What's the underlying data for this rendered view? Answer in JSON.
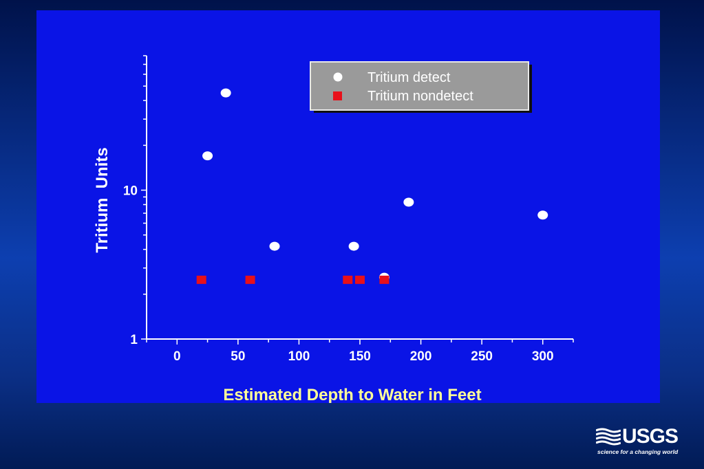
{
  "colors": {
    "panel_background": "#0a14e6",
    "detect_marker": "#ffffff",
    "nondetect_marker": "#e8101a",
    "xlabel_color": "#ffff99",
    "legend_background": "#9a9a9a"
  },
  "logo": {
    "wordmark": "USGS",
    "tagline": "science for a changing world",
    "icon": "usgs-waves-icon"
  },
  "chart_data": {
    "type": "scatter",
    "title": "",
    "xlabel": "Estimated Depth to Water in Feet",
    "ylabel": "Tritium  Units",
    "xlim": [
      -25,
      325
    ],
    "ylim": [
      1,
      80
    ],
    "yscale": "log",
    "grid": false,
    "legend_position": "top-right",
    "x_ticks": [
      0,
      50,
      100,
      150,
      200,
      250,
      300
    ],
    "x_tick_labels": [
      "0",
      "50",
      "100",
      "150",
      "200",
      "250",
      "300"
    ],
    "y_ticks": [
      1,
      10
    ],
    "y_tick_labels": [
      "1",
      "10"
    ],
    "series": [
      {
        "name": "Tritium detect",
        "marker": "circle",
        "color": "#ffffff",
        "x": [
          40,
          25,
          190,
          300,
          80,
          145,
          170
        ],
        "y": [
          45,
          17,
          8.3,
          6.8,
          4.2,
          4.2,
          2.6
        ]
      },
      {
        "name": "Tritium nondetect",
        "marker": "square",
        "color": "#e8101a",
        "x": [
          20,
          60,
          140,
          150,
          170
        ],
        "y": [
          2.5,
          2.5,
          2.5,
          2.5,
          2.5
        ]
      }
    ]
  }
}
